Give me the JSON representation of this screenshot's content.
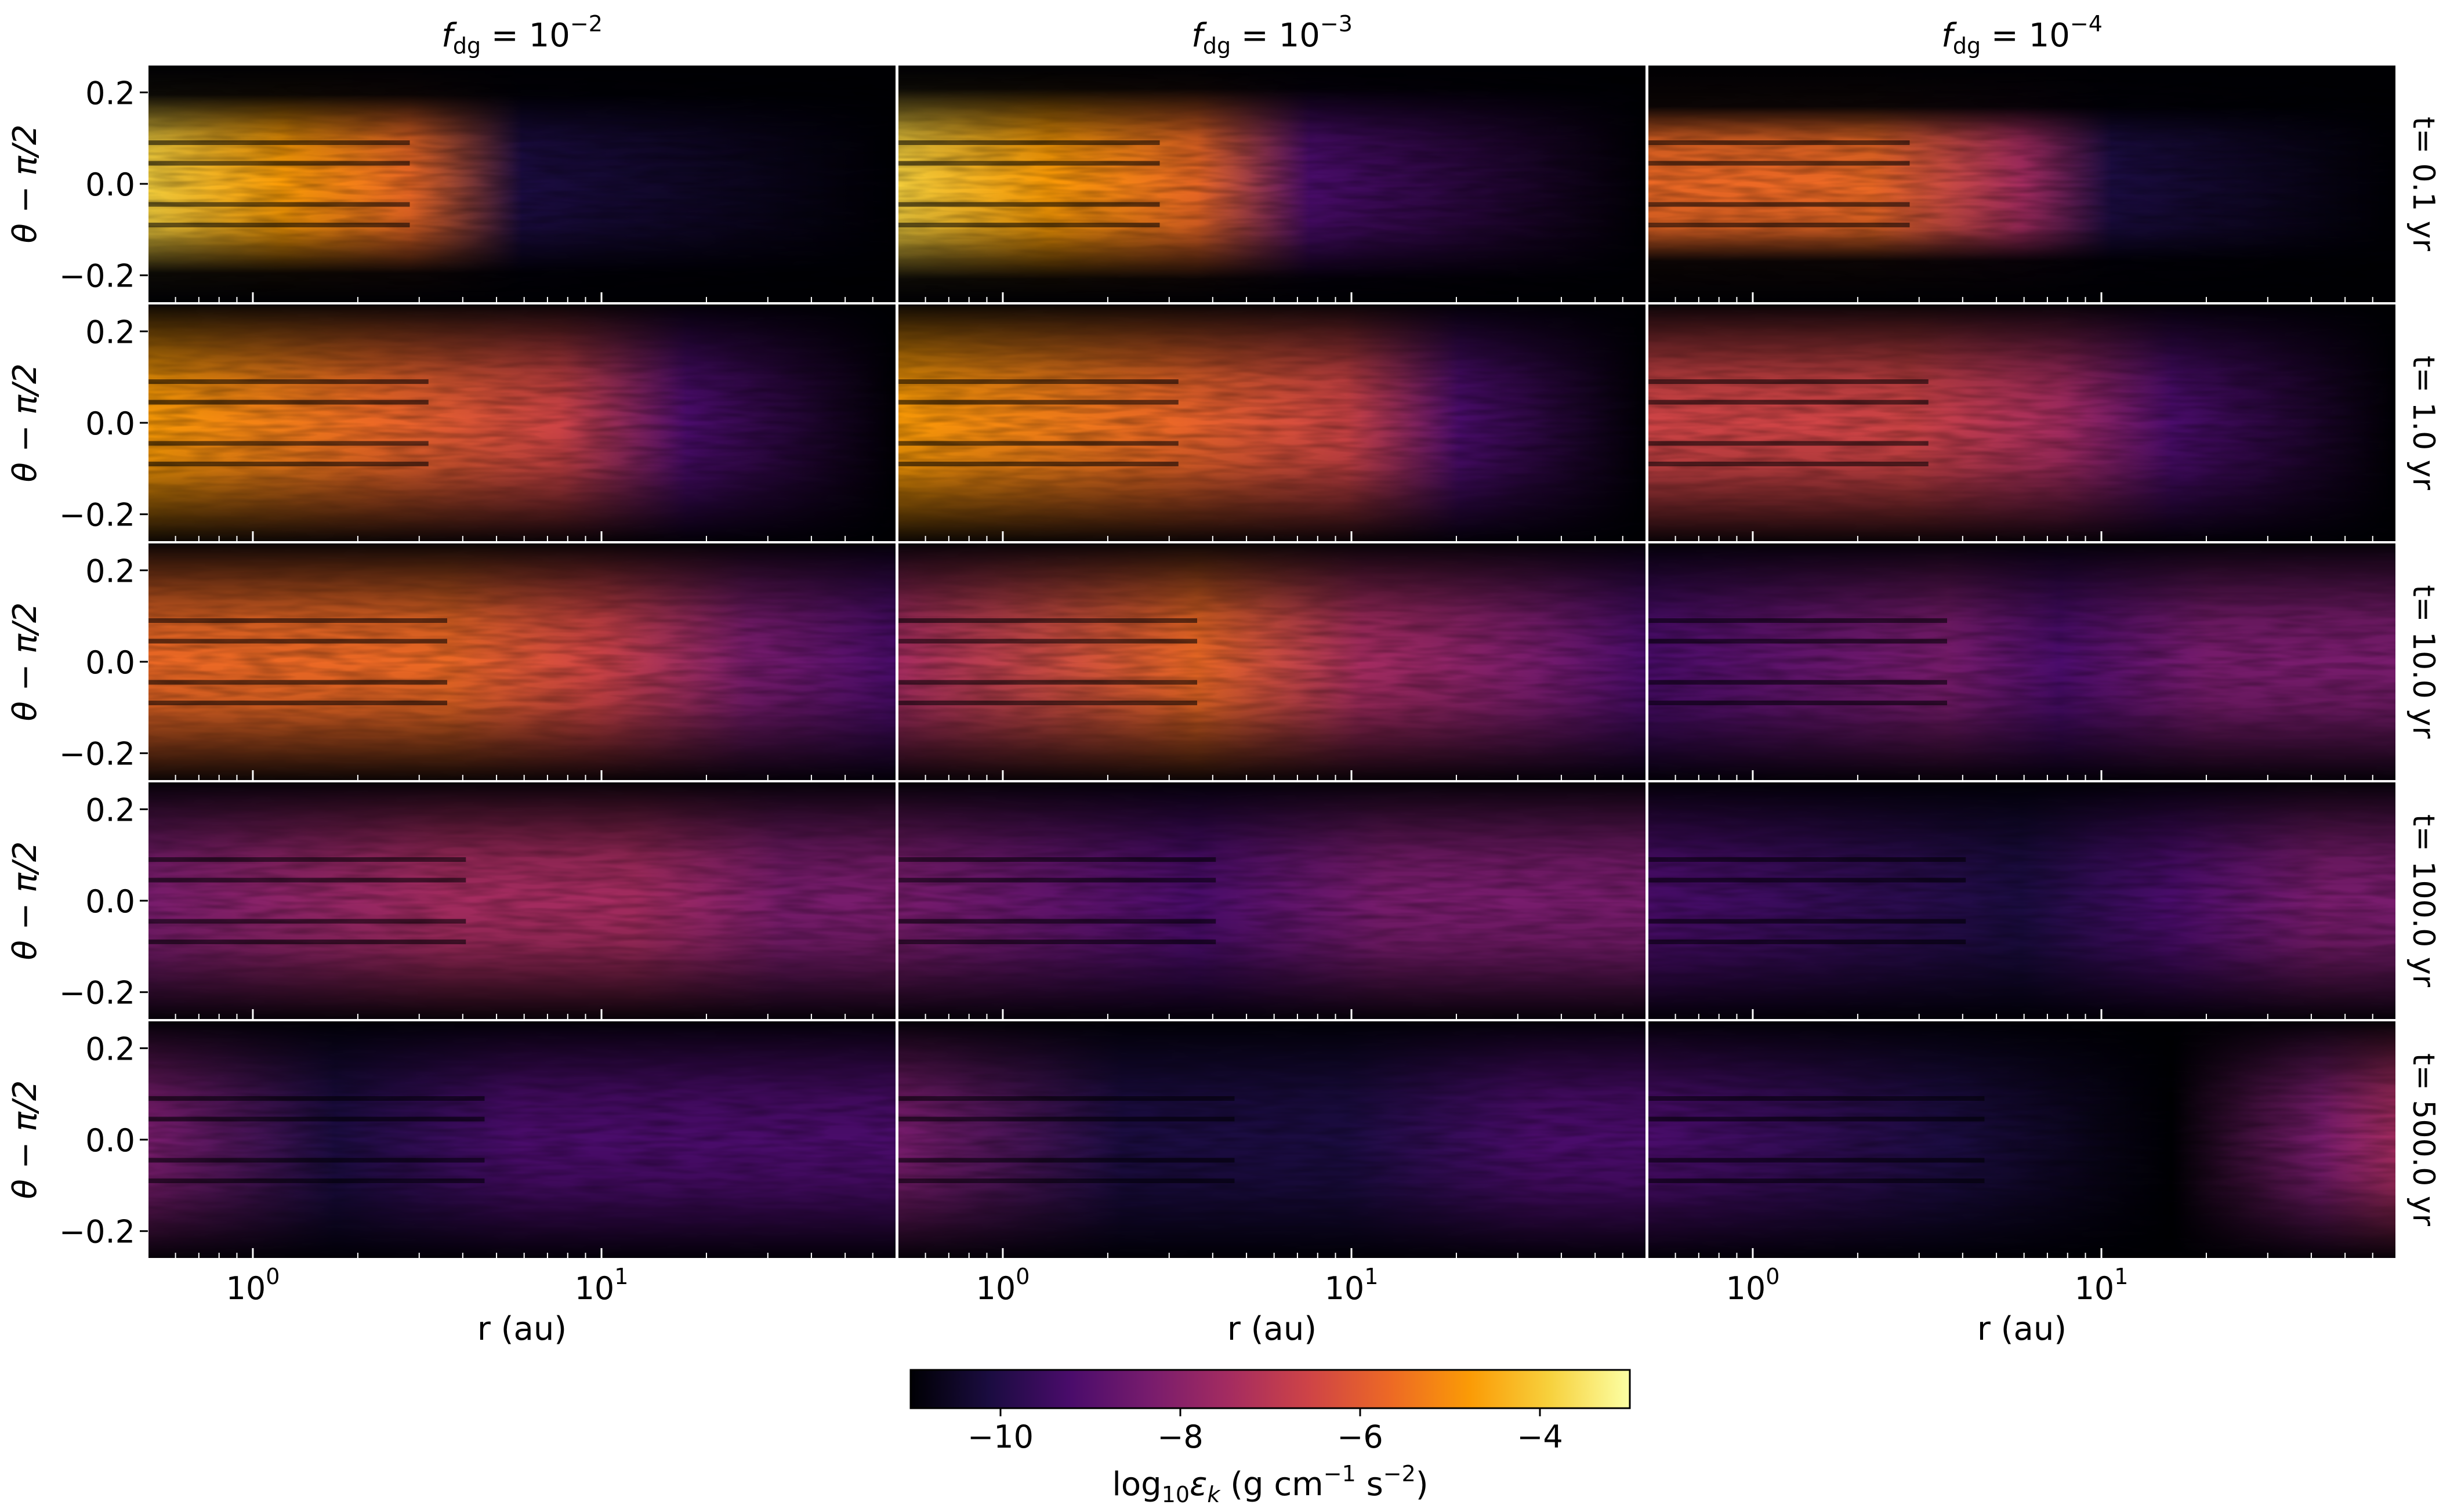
{
  "chart_data": {
    "type": "heatmap",
    "layout": "grid",
    "columns": [
      {
        "label": "f_dg = 10^-2",
        "f": "f",
        "sub": "dg",
        "base": "= 10",
        "exp": "−2"
      },
      {
        "label": "f_dg = 10^-3",
        "f": "f",
        "sub": "dg",
        "base": "= 10",
        "exp": "−3"
      },
      {
        "label": "f_dg = 10^-4",
        "f": "f",
        "sub": "dg",
        "base": "= 10",
        "exp": "−4"
      }
    ],
    "rows": [
      {
        "label": "t= 0.1 yr",
        "t": 0.1
      },
      {
        "label": "t= 1.0 yr",
        "t": 1.0
      },
      {
        "label": "t= 10.0 yr",
        "t": 10.0
      },
      {
        "label": "t= 100.0 yr",
        "t": 100.0
      },
      {
        "label": "t= 500.0 yr",
        "t": 500.0
      }
    ],
    "xlabel": "r (au)",
    "ylabel": "θ − π/2",
    "xscale": "log",
    "xlim": [
      0.5,
      70
    ],
    "ylim": [
      -0.26,
      0.26
    ],
    "xticks": [
      {
        "value": 1,
        "base": "10",
        "exp": "0"
      },
      {
        "value": 10,
        "base": "10",
        "exp": "1"
      }
    ],
    "yticks": [
      {
        "value": -0.2,
        "label": "−0.2"
      },
      {
        "value": 0.0,
        "label": "0.0"
      },
      {
        "value": 0.2,
        "label": "0.2"
      }
    ],
    "colorbar": {
      "colormap": "inferno",
      "range": [
        -11,
        -3
      ],
      "ticks": [
        {
          "value": -10,
          "label": "−10"
        },
        {
          "value": -8,
          "label": "−8"
        },
        {
          "value": -6,
          "label": "−6"
        },
        {
          "value": -4,
          "label": "−4"
        }
      ],
      "label": {
        "pre": "log",
        "sub1": "10",
        "mid": "ε",
        "sub2": "k",
        "post1": " (g cm",
        "sup1": "−1",
        "post2": " s",
        "sup2": "−2",
        "post3": ")"
      }
    },
    "colors": {
      "c0": "#000004",
      "c1": "#1b0c41",
      "c2": "#4a0c6b",
      "c3": "#781c6d",
      "c4": "#a52c60",
      "c5": "#cf4446",
      "c6": "#ed6925",
      "c7": "#fb9b06",
      "c8": "#f7d13d",
      "c9": "#fcffa4"
    }
  }
}
